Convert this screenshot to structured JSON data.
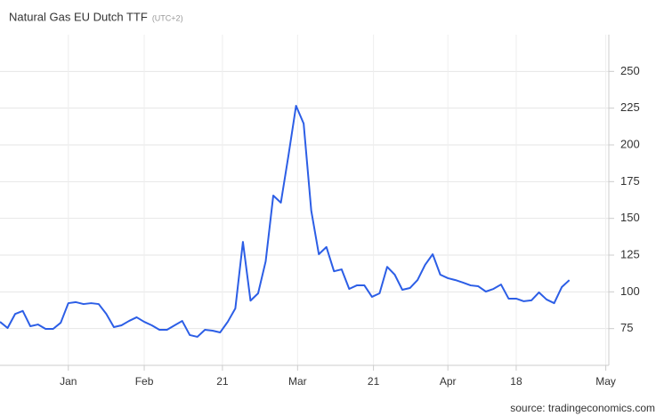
{
  "chart_data": {
    "type": "line",
    "title": "Natural Gas EU Dutch TTF",
    "subtitle": "(UTC+2)",
    "source": "source: tradingeconomics.com",
    "series": [
      {
        "name": "Natural Gas EU Dutch TTF",
        "color": "#2c5ee6",
        "values": [
          79.6,
          75.4,
          85,
          87,
          76.6,
          77.8,
          74.8,
          74.8,
          79,
          92.3,
          93,
          91.7,
          92.3,
          91.7,
          85,
          76,
          77.2,
          80.2,
          82.7,
          79.6,
          77.2,
          74.2,
          74.2,
          77.2,
          80.2,
          70.6,
          69.4,
          74.2,
          73.6,
          72.4,
          79.6,
          88.7,
          134,
          94,
          99,
          120.8,
          165.5,
          160.7,
          192.8,
          226.6,
          214.5,
          155.3,
          125.6,
          130.5,
          114,
          115.3,
          102,
          104.4,
          104.4,
          96.6,
          99,
          117,
          111.7,
          101.4,
          102.6,
          108,
          118.4,
          125.6,
          111.7,
          109.3,
          108,
          106.3,
          104.4,
          103.8,
          100.2,
          102,
          105,
          95.4,
          95.4,
          93.6,
          94.2,
          99.6,
          94.8,
          92.3,
          103.2,
          108
        ]
      }
    ],
    "xlim": [
      0,
      80.2
    ],
    "xticks": [
      {
        "value": 9.0,
        "label": "Jan"
      },
      {
        "value": 19.0,
        "label": "Feb"
      },
      {
        "value": 29.3,
        "label": "21"
      },
      {
        "value": 39.2,
        "label": "Mar"
      },
      {
        "value": 49.2,
        "label": "21"
      },
      {
        "value": 59.0,
        "label": "Apr"
      },
      {
        "value": 68.0,
        "label": "18"
      },
      {
        "value": 79.8,
        "label": "May"
      }
    ],
    "ylim": [
      50,
      275
    ],
    "yticks": [
      75,
      100,
      125,
      150,
      175,
      200,
      225,
      250
    ],
    "grid": true
  }
}
